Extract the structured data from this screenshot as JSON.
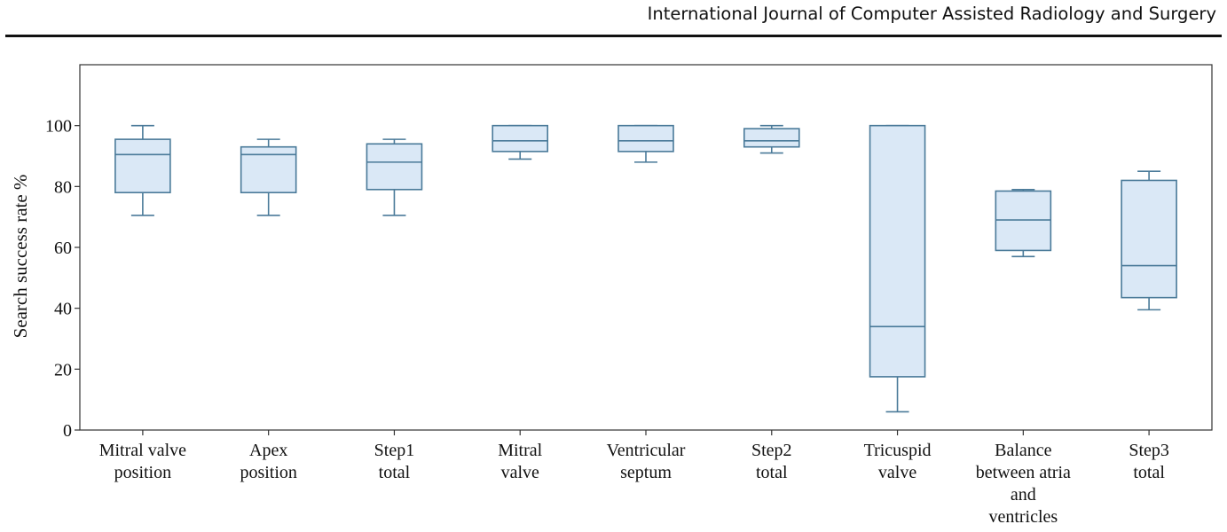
{
  "header": {
    "journal": "International Journal of Computer Assisted Radiology and Surgery"
  },
  "chart_data": {
    "type": "boxplot",
    "title": "",
    "xlabel": "",
    "ylabel": "Search success rate %",
    "ylim": [
      0,
      120
    ],
    "yticks": [
      0,
      20,
      40,
      60,
      80,
      100
    ],
    "grid": false,
    "colors": {
      "box_fill": "#dae8f6",
      "box_stroke": "#4a7a99",
      "axis": "#333333"
    },
    "categories": [
      [
        "Mitral valve",
        "position"
      ],
      [
        "Apex",
        "position"
      ],
      [
        "Step1",
        "total"
      ],
      [
        "Mitral",
        "valve"
      ],
      [
        "Ventricular",
        "septum"
      ],
      [
        "Step2",
        "total"
      ],
      [
        "Tricuspid",
        "valve"
      ],
      [
        "Balance",
        "between atria",
        "and",
        "ventricles"
      ],
      [
        "Step3",
        "total"
      ]
    ],
    "boxes": [
      {
        "whisker_low": 70.5,
        "q1": 78,
        "median": 90.5,
        "q3": 95.5,
        "whisker_high": 100
      },
      {
        "whisker_low": 70.5,
        "q1": 78,
        "median": 90.5,
        "q3": 93,
        "whisker_high": 95.5
      },
      {
        "whisker_low": 70.5,
        "q1": 79,
        "median": 88,
        "q3": 94,
        "whisker_high": 95.5
      },
      {
        "whisker_low": 89,
        "q1": 91.5,
        "median": 95,
        "q3": 100,
        "whisker_high": 100
      },
      {
        "whisker_low": 88,
        "q1": 91.5,
        "median": 95,
        "q3": 100,
        "whisker_high": 100
      },
      {
        "whisker_low": 91,
        "q1": 93,
        "median": 95,
        "q3": 99,
        "whisker_high": 100
      },
      {
        "whisker_low": 6,
        "q1": 17.5,
        "median": 34,
        "q3": 100,
        "whisker_high": 100
      },
      {
        "whisker_low": 57,
        "q1": 59,
        "median": 69,
        "q3": 78.5,
        "whisker_high": 79
      },
      {
        "whisker_low": 39.5,
        "q1": 43.5,
        "median": 54,
        "q3": 82,
        "whisker_high": 85
      }
    ]
  }
}
